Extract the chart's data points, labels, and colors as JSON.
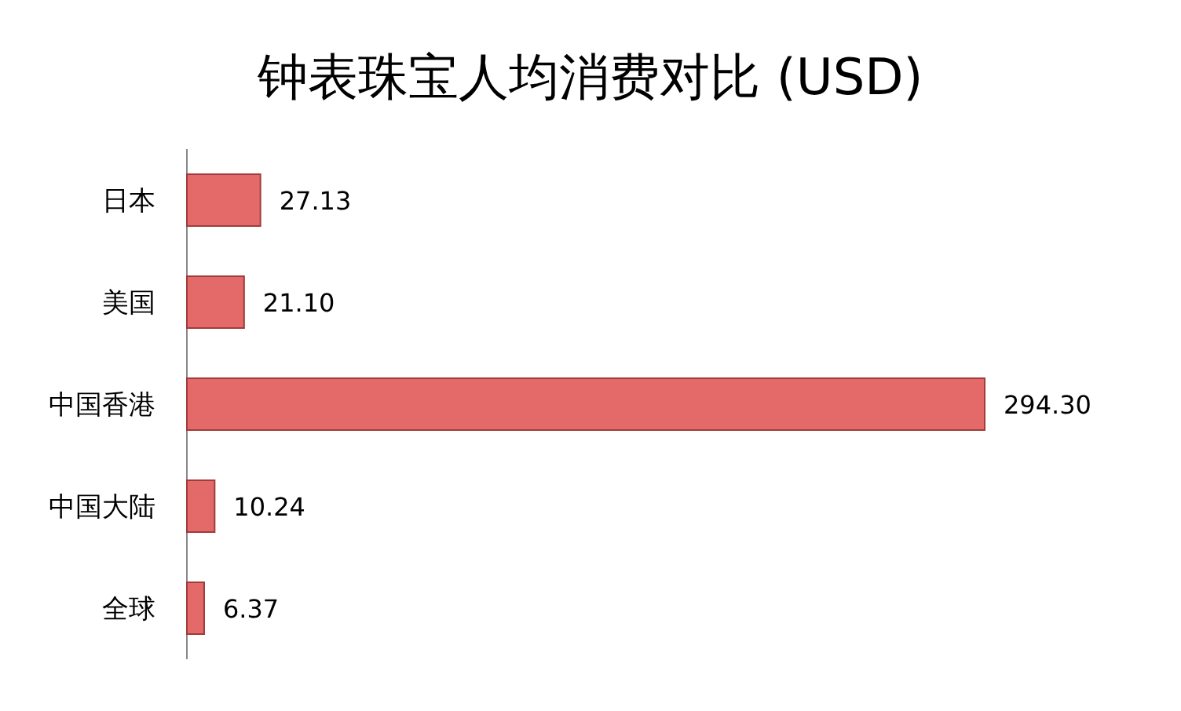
{
  "chart_data": {
    "type": "bar",
    "orientation": "horizontal",
    "title": "钟表珠宝人均消费对比 (USD)",
    "categories": [
      "日本",
      "美国",
      "中国香港",
      "中国大陆",
      "全球"
    ],
    "values": [
      27.13,
      21.1,
      294.3,
      10.24,
      6.37
    ],
    "value_labels": [
      "27.13",
      "21.10",
      "294.30",
      "10.24",
      "6.37"
    ],
    "color": "#e46a6a"
  }
}
